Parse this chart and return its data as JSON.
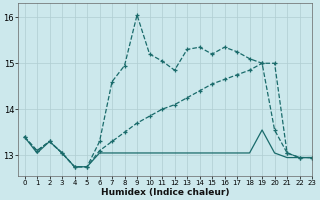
{
  "title": "",
  "xlabel": "Humidex (Indice chaleur)",
  "ylabel": "",
  "bg_color": "#cce8ec",
  "line_color": "#1a6b6b",
  "grid_color": "#b0ced2",
  "xlim": [
    -0.5,
    23
  ],
  "ylim": [
    12.55,
    16.3
  ],
  "yticks": [
    13,
    14,
    15,
    16
  ],
  "xticks": [
    0,
    1,
    2,
    3,
    4,
    5,
    6,
    7,
    8,
    9,
    10,
    11,
    12,
    13,
    14,
    15,
    16,
    17,
    18,
    19,
    20,
    21,
    22,
    23
  ],
  "series1_x": [
    0,
    1,
    2,
    3,
    4,
    5,
    6,
    7,
    8,
    9,
    10,
    11,
    12,
    13,
    14,
    15,
    16,
    17,
    18,
    19,
    20,
    21,
    22,
    23
  ],
  "series1_y": [
    13.4,
    13.1,
    13.3,
    13.05,
    12.75,
    12.75,
    13.3,
    14.6,
    14.95,
    16.05,
    15.2,
    15.05,
    14.85,
    15.3,
    15.35,
    15.2,
    15.35,
    15.25,
    15.1,
    15.0,
    13.55,
    13.05,
    12.95,
    12.95
  ],
  "series2_x": [
    0,
    1,
    2,
    3,
    4,
    5,
    6,
    7,
    8,
    9,
    10,
    11,
    12,
    13,
    14,
    15,
    16,
    17,
    18,
    19,
    20,
    21,
    22,
    23
  ],
  "series2_y": [
    13.4,
    13.1,
    13.3,
    13.05,
    12.75,
    12.75,
    13.1,
    13.3,
    13.5,
    13.7,
    13.85,
    14.0,
    14.1,
    14.25,
    14.4,
    14.55,
    14.65,
    14.75,
    14.85,
    15.0,
    15.0,
    13.05,
    12.95,
    12.95
  ],
  "series3_x": [
    0,
    1,
    2,
    3,
    4,
    5,
    6,
    7,
    8,
    9,
    10,
    11,
    12,
    13,
    14,
    15,
    16,
    17,
    18,
    19,
    20,
    21,
    22,
    23
  ],
  "series3_y": [
    13.4,
    13.05,
    13.3,
    13.05,
    12.75,
    12.75,
    13.05,
    13.05,
    13.05,
    13.05,
    13.05,
    13.05,
    13.05,
    13.05,
    13.05,
    13.05,
    13.05,
    13.05,
    13.05,
    13.55,
    13.05,
    12.95,
    12.95,
    12.95
  ]
}
